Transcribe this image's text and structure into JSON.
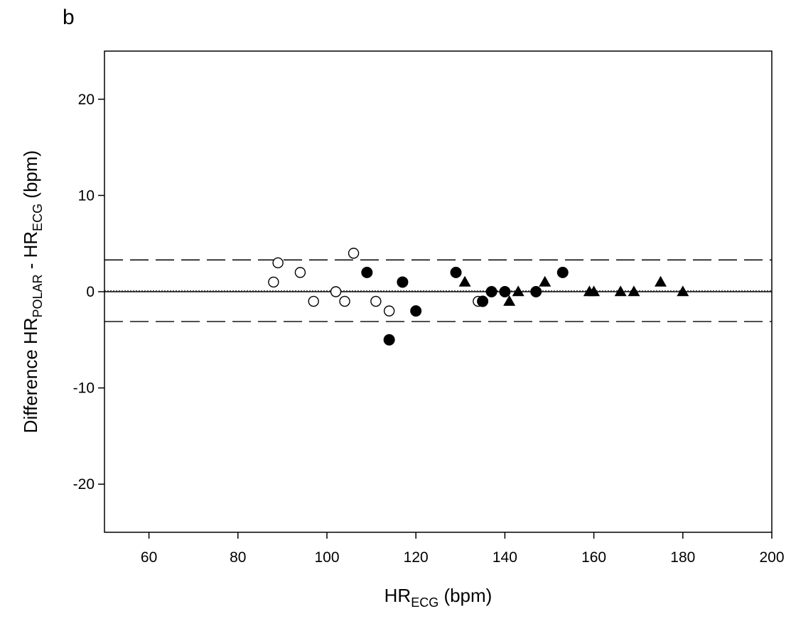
{
  "panel_label": "b",
  "chart_data": {
    "type": "scatter",
    "xlabel": {
      "main": "HR",
      "sub": "ECG",
      "suffix": " (bpm)"
    },
    "ylabel": {
      "prefix": "Difference HR",
      "sub1": "POLAR",
      "mid": " - HR",
      "sub2": "ECG",
      "suffix": " (bpm)"
    },
    "xlim": [
      50,
      200
    ],
    "ylim": [
      -25,
      25
    ],
    "x_ticks": [
      60,
      80,
      100,
      120,
      140,
      160,
      180,
      200
    ],
    "y_ticks": [
      -20,
      -10,
      0,
      10,
      20
    ],
    "grid": false,
    "reference_lines": [
      {
        "y": 3.3,
        "style": "long-dash"
      },
      {
        "y": 0.1,
        "style": "dotted"
      },
      {
        "y": 0,
        "style": "solid"
      },
      {
        "y": -3.1,
        "style": "long-dash"
      }
    ],
    "series": [
      {
        "marker": "open-circle",
        "points": [
          [
            88,
            1
          ],
          [
            89,
            3
          ],
          [
            94,
            2
          ],
          [
            97,
            -1
          ],
          [
            102,
            0
          ],
          [
            104,
            -1
          ],
          [
            106,
            4
          ],
          [
            111,
            -1
          ],
          [
            114,
            -2
          ],
          [
            134,
            -1
          ]
        ]
      },
      {
        "marker": "filled-circle",
        "points": [
          [
            109,
            2
          ],
          [
            114,
            -5
          ],
          [
            117,
            1
          ],
          [
            120,
            -2
          ],
          [
            129,
            2
          ],
          [
            135,
            -1
          ],
          [
            137,
            0
          ],
          [
            140,
            0
          ],
          [
            147,
            0
          ],
          [
            153,
            2
          ]
        ]
      },
      {
        "marker": "filled-triangle",
        "points": [
          [
            131,
            1
          ],
          [
            141,
            -1
          ],
          [
            143,
            0
          ],
          [
            149,
            1
          ],
          [
            159,
            0
          ],
          [
            160,
            0
          ],
          [
            166,
            0
          ],
          [
            169,
            0
          ],
          [
            175,
            1
          ],
          [
            180,
            0
          ]
        ]
      }
    ]
  }
}
